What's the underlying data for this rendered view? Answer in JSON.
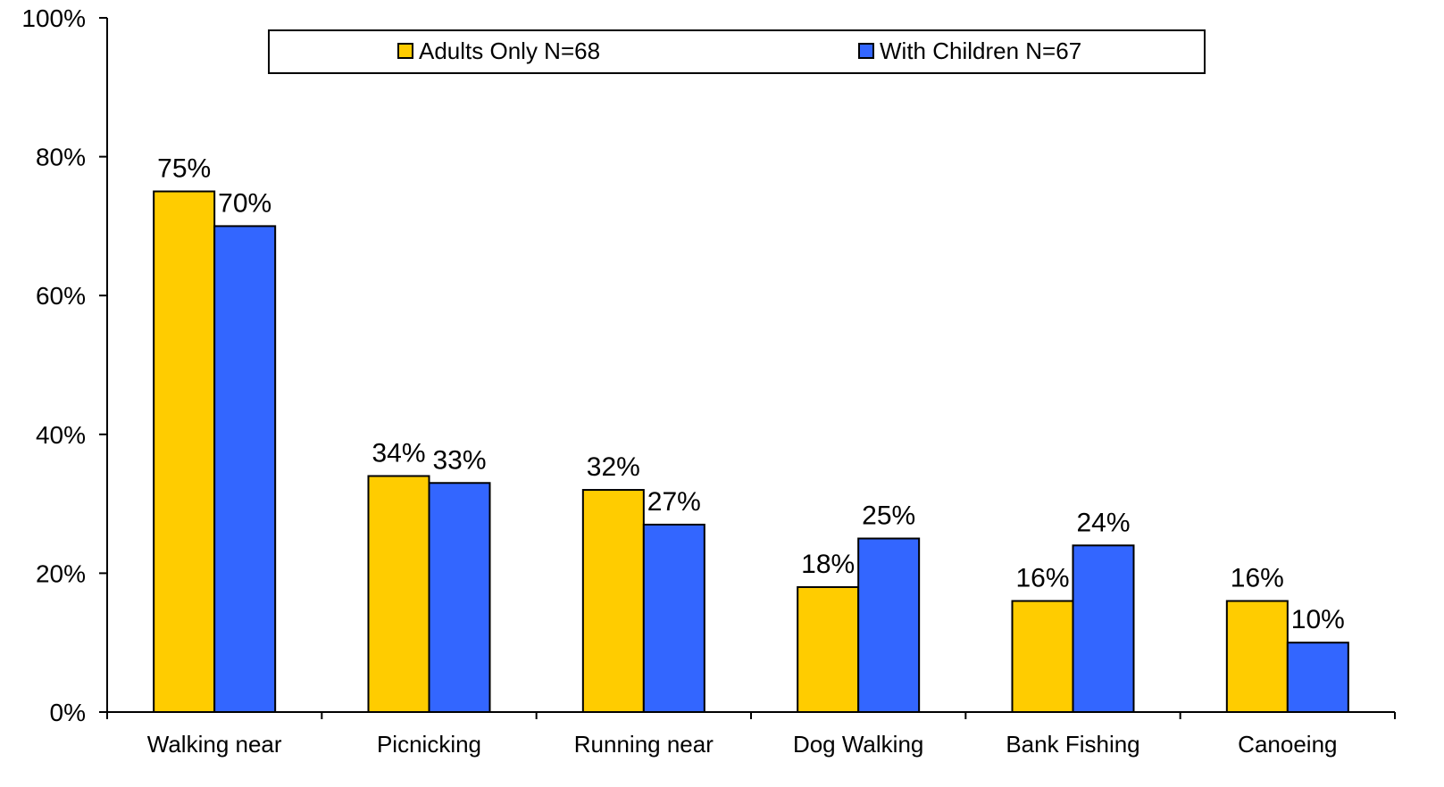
{
  "chart_data": {
    "type": "bar",
    "categories": [
      "Walking near",
      "Picnicking",
      "Running near",
      "Dog Walking",
      "Bank Fishing",
      "Canoeing"
    ],
    "series": [
      {
        "name": "Adults Only N=68",
        "color": "#FFCC00",
        "values": [
          75,
          34,
          32,
          18,
          16,
          16
        ],
        "labels": [
          "75%",
          "34%",
          "32%",
          "18%",
          "16%",
          "16%"
        ]
      },
      {
        "name": "With Children N=67",
        "color": "#3366FF",
        "values": [
          70,
          33,
          27,
          25,
          24,
          10
        ],
        "labels": [
          "70%",
          "33%",
          "27%",
          "25%",
          "24%",
          "10%"
        ]
      }
    ],
    "ylim": [
      0,
      100
    ],
    "yticks": [
      0,
      20,
      40,
      60,
      80,
      100
    ],
    "ytick_labels": [
      "0%",
      "20%",
      "40%",
      "60%",
      "80%",
      "100%"
    ],
    "grid": false,
    "legend_position": "top",
    "title": "",
    "xlabel": "",
    "ylabel": ""
  }
}
